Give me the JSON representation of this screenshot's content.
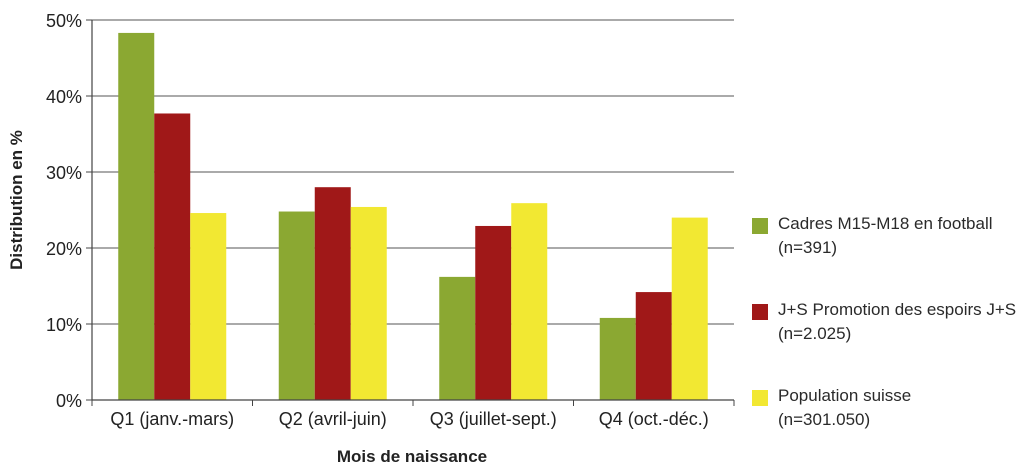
{
  "chart_data": {
    "type": "bar",
    "title": "",
    "xlabel": "Mois de naissance",
    "ylabel": "Distribution en %",
    "ylim": [
      0,
      50
    ],
    "yticks": [
      0,
      10,
      20,
      30,
      40,
      50
    ],
    "ytick_labels": [
      "0%",
      "10%",
      "20%",
      "30%",
      "40%",
      "50%"
    ],
    "grid": true,
    "legend_position": "right",
    "categories": [
      "Q1 (janv.-mars)",
      "Q2 (avril-juin)",
      "Q3 (juillet-sept.)",
      "Q4 (oct.-déc.)"
    ],
    "series": [
      {
        "name": "Cadres M15-M18 en football",
        "note": "(n=391)",
        "color": "#8ba832",
        "values": [
          48.3,
          24.8,
          16.2,
          10.8
        ]
      },
      {
        "name": "J+S Promotion des espoirs J+S",
        "note": "(n=2.025)",
        "color": "#a01818",
        "values": [
          37.7,
          28.0,
          22.9,
          14.2
        ]
      },
      {
        "name": "Population suisse",
        "note": "(n=301.050)",
        "color": "#f2e832",
        "values": [
          24.6,
          25.4,
          25.9,
          24.0
        ]
      }
    ]
  }
}
